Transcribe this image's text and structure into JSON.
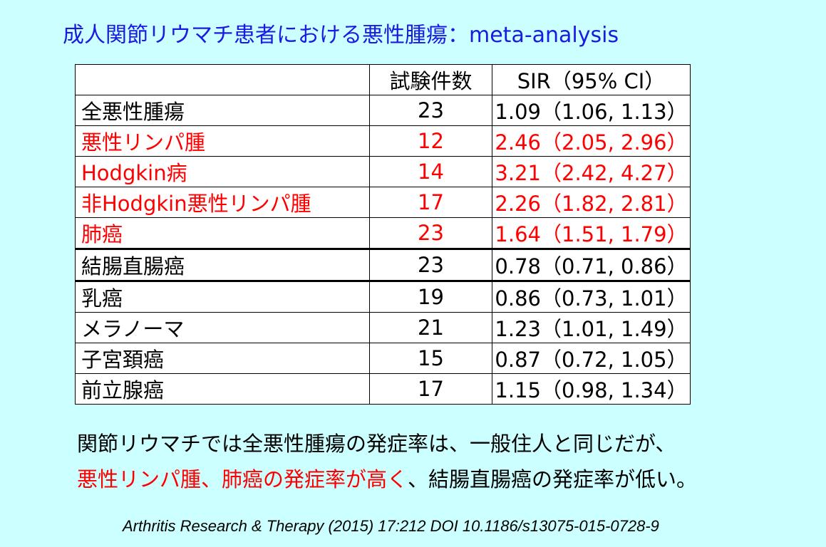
{
  "title": "成人関節リウマチ患者における悪性腫瘍：meta-analysis",
  "table": {
    "headers": [
      "",
      "試験件数",
      "SIR（95% CI）"
    ],
    "rows": [
      {
        "name": "全悪性腫瘍",
        "count": "23",
        "sir": "1.09（1.06, 1.13）",
        "highlight": false
      },
      {
        "name": "悪性リンパ腫",
        "count": "12",
        "sir": "2.46（2.05, 2.96）",
        "highlight": true
      },
      {
        "name": "Hodgkin病",
        "count": "14",
        "sir": "3.21（2.42, 4.27）",
        "highlight": true
      },
      {
        "name": "非Hodgkin悪性リンパ腫",
        "count": "17",
        "sir": "2.26（1.82, 2.81）",
        "highlight": true
      },
      {
        "name": "肺癌",
        "count": "23",
        "sir": "1.64（1.51, 1.79）",
        "highlight": true
      },
      {
        "name": "結腸直腸癌",
        "count": "23",
        "sir": "0.78（0.71, 0.86）",
        "highlight": false
      },
      {
        "name": "乳癌",
        "count": "19",
        "sir": "0.86（0.73, 1.01）",
        "highlight": false
      },
      {
        "name": "メラノーマ",
        "count": "21",
        "sir": "1.23（1.01, 1.49）",
        "highlight": false
      },
      {
        "name": "子宮頚癌",
        "count": "15",
        "sir": "0.87（0.72, 1.05）",
        "highlight": false
      },
      {
        "name": "前立腺癌",
        "count": "17",
        "sir": "1.15（0.98, 1.34）",
        "highlight": false
      }
    ]
  },
  "summary": {
    "line1": "関節リウマチでは全悪性腫瘍の発症率は、一般住人と同じだが、",
    "line2_red": "悪性リンパ腫、肺癌の発症率が高く",
    "line2_black": "、結腸直腸癌の発症率が低い。"
  },
  "citation": "Arthritis Research & Therapy (2015) 17:212 DOI 10.1186/s13075-015-0728-9",
  "colors": {
    "background": "#ccffff",
    "title": "#1a1ae0",
    "highlight": "#ff0000"
  }
}
